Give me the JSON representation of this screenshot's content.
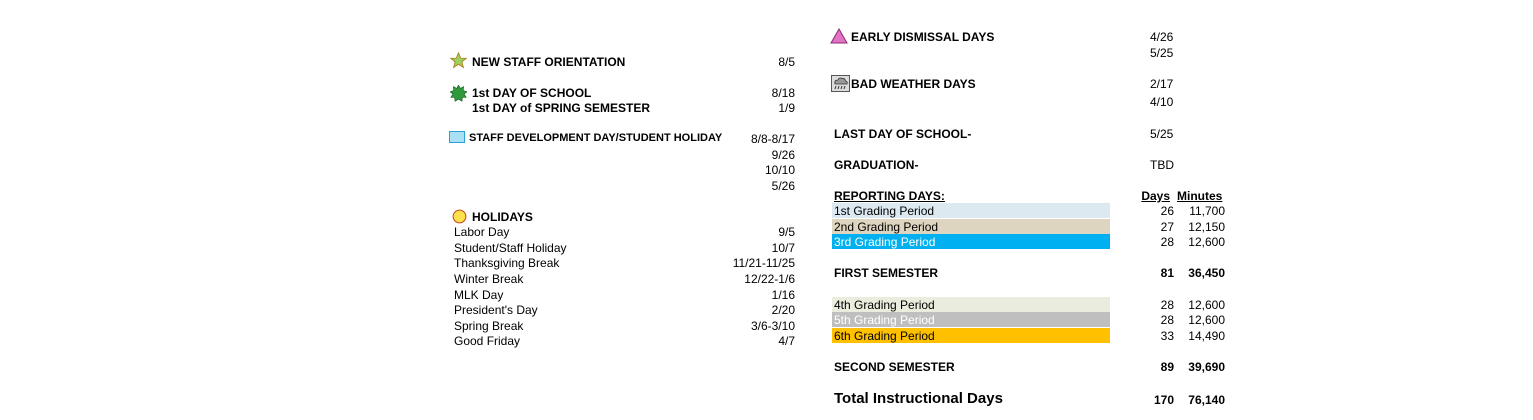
{
  "colors": {
    "band_q1": "#dce9f0",
    "band_q2": "#ddd5c0",
    "band_q3": "#00b0f0",
    "band_q4": "#eaeddd",
    "band_q5": "#bfbfbf",
    "band_q6": "#ffc000",
    "early_dismissal_icon": "#e373c6",
    "orientation_icon": "#9bd15f",
    "first_day_icon": "#2e9a3a",
    "staff_dev_icon": "#a9e0f3",
    "holiday_icon": "#ffe04d"
  },
  "left": {
    "orientation": {
      "icon": "star-icon",
      "label": "NEW STAFF ORIENTATION",
      "date": "8/5"
    },
    "first_day": {
      "icon": "sun-icon",
      "label": "1st DAY OF SCHOOL",
      "date": "8/18"
    },
    "spring_day": {
      "label": "1st DAY of SPRING SEMESTER",
      "date": "1/9"
    },
    "staff_dev": {
      "icon": "light-blue-rectangle-icon",
      "label": "STAFF DEVELOPMENT DAY/STUDENT HOLIDAY",
      "dates": [
        "8/8-8/17",
        "9/26",
        "10/10",
        "5/26"
      ]
    },
    "holidays": {
      "icon": "yellow-circle-icon",
      "label": "HOLIDAYS",
      "items": [
        {
          "name": "Labor Day",
          "date": "9/5"
        },
        {
          "name": "Student/Staff Holiday",
          "date": "10/7"
        },
        {
          "name": "Thanksgiving Break",
          "date": "11/21-11/25"
        },
        {
          "name": "Winter Break",
          "date": "12/22-1/6"
        },
        {
          "name": "MLK Day",
          "date": "1/16"
        },
        {
          "name": "President's Day",
          "date": "2/20"
        },
        {
          "name": "Spring Break",
          "date": "3/6-3/10"
        },
        {
          "name": "Good Friday",
          "date": "4/7"
        }
      ]
    }
  },
  "right": {
    "early_dismissal": {
      "icon": "pink-triangle-icon",
      "label": "EARLY DISMISSAL DAYS",
      "dates": [
        "4/26",
        "5/25"
      ]
    },
    "bad_weather": {
      "icon": "storm-cloud-icon",
      "label": "BAD WEATHER DAYS",
      "dates": [
        "2/17",
        "4/10"
      ]
    },
    "last_day": {
      "label": "LAST DAY OF SCHOOL-",
      "date": "5/25"
    },
    "graduation": {
      "label": "GRADUATION-",
      "date": "TBD"
    },
    "reporting": {
      "label": "REPORTING DAYS:",
      "days_header": "Days",
      "minutes_header": "Minutes",
      "periods": [
        {
          "name": "1st Grading Period",
          "days": "26",
          "minutes": "11,700"
        },
        {
          "name": "2nd Grading Period",
          "days": "27",
          "minutes": "12,150"
        },
        {
          "name": "3rd Grading Period",
          "days": "28",
          "minutes": "12,600"
        },
        {
          "name": "4th Grading Period",
          "days": "28",
          "minutes": "12,600"
        },
        {
          "name": "5th Grading Period",
          "days": "28",
          "minutes": "12,600"
        },
        {
          "name": "6th Grading Period",
          "days": "33",
          "minutes": "14,490"
        }
      ],
      "first_semester": {
        "label": "FIRST SEMESTER",
        "days": "81",
        "minutes": "36,450"
      },
      "second_semester": {
        "label": "SECOND SEMESTER",
        "days": "89",
        "minutes": "39,690"
      },
      "total": {
        "label": "Total Instructional Days",
        "days": "170",
        "minutes": "76,140"
      }
    }
  }
}
